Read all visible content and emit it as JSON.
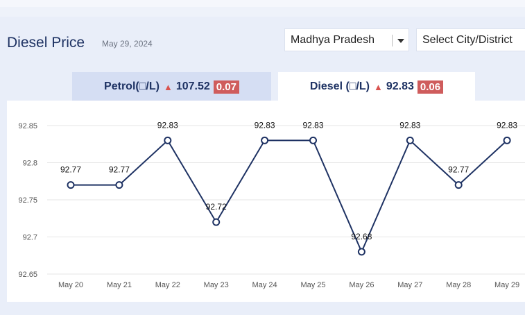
{
  "header": {
    "title": "Diesel Price",
    "date": "May 29, 2024"
  },
  "filters": {
    "state": {
      "value": "Madhya Pradesh"
    },
    "city": {
      "placeholder": "Select City/District"
    }
  },
  "tabs": [
    {
      "label": "Petrol(□/L)",
      "price": "107.52",
      "change": "0.07",
      "active": false
    },
    {
      "label": "Diesel (□/L)",
      "price": "92.83",
      "change": "0.06",
      "active": true
    }
  ],
  "colors": {
    "line": "#1e3263",
    "badge": "#cf5c5c",
    "up_arrow": "#d9534f"
  },
  "chart_data": {
    "type": "line",
    "categories": [
      "May 20",
      "May 21",
      "May 22",
      "May 23",
      "May 24",
      "May 25",
      "May 26",
      "May 27",
      "May 28",
      "May 29"
    ],
    "values": [
      92.77,
      92.77,
      92.83,
      92.72,
      92.83,
      92.83,
      92.68,
      92.83,
      92.77,
      92.83
    ],
    "data_labels": [
      "92.77",
      "92.77",
      "92.83",
      "92.72",
      "92.83",
      "92.83",
      "92.68",
      "92.83",
      "92.77",
      "92.83"
    ],
    "y_ticks": [
      "92.85",
      "92.8",
      "92.75",
      "92.7",
      "92.65"
    ],
    "ylim": [
      92.65,
      92.85
    ],
    "grid": true
  }
}
